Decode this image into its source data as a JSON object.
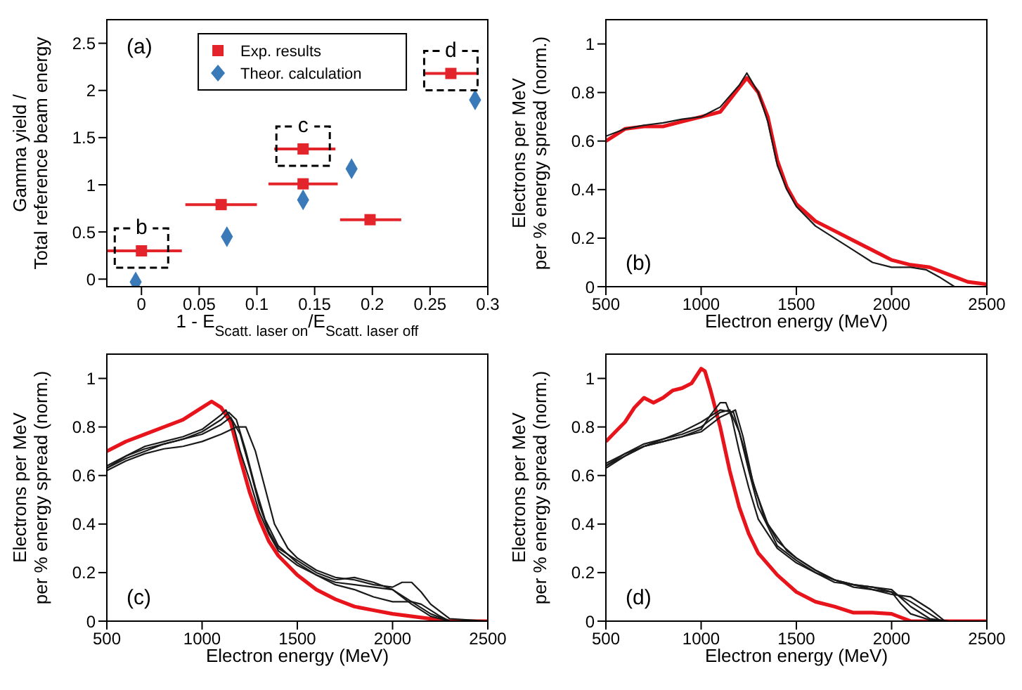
{
  "chart_data": [
    {
      "type": "scatter",
      "xlabel": "1 - E$_{Scatt. laser on}$/E$_{Scatt. laser off}$",
      "ylabel": "Gamma yield /\nTotal reference beam energy",
      "xlim": [
        -0.03,
        0.3
      ],
      "ylim": [
        -0.08,
        2.75
      ],
      "xticks": [
        0,
        0.05,
        0.1,
        0.15,
        0.2,
        0.25,
        0.3
      ],
      "yticks": [
        0,
        0.5,
        1,
        1.5,
        2,
        2.5
      ],
      "legend": "top",
      "annotations": [
        "(a)",
        {
          "text": "b",
          "x": 0,
          "y": 0.3
        },
        {
          "text": "c",
          "x": 0.14,
          "y": 1.38
        },
        {
          "text": "d",
          "x": 0.268,
          "y": 2.18
        }
      ],
      "series": [
        {
          "name": "Exp. results",
          "color": "#e3242b",
          "marker": "square",
          "x": [
            0,
            0.069,
            0.14,
            0.14,
            0.198,
            0.268
          ],
          "values": [
            0.3,
            0.79,
            1.38,
            1.01,
            0.63,
            2.18
          ],
          "xerrors": [
            [
              -0.03,
              0.035
            ],
            [
              0.038,
              0.1
            ],
            [
              0.115,
              0.168
            ],
            [
              0.11,
              0.17
            ],
            [
              0.172,
              0.225
            ],
            [
              0.245,
              0.292
            ]
          ]
        },
        {
          "name": "Theor. calculation",
          "color": "#3a7ab8",
          "marker": "diamond",
          "x": [
            -0.005,
            0.074,
            0.14,
            0.182,
            0.289
          ],
          "values": [
            -0.03,
            0.45,
            0.84,
            1.17,
            1.9
          ]
        }
      ]
    },
    {
      "type": "line",
      "xlabel": "Electron energy (MeV)",
      "ylabel": "Electrons per MeV\nper % energy spread (norm.)",
      "xlim": [
        500,
        2500
      ],
      "ylim": [
        0,
        1.1
      ],
      "xticks": [
        500,
        1000,
        1500,
        2000,
        2500
      ],
      "yticks": [
        0,
        0.2,
        0.4,
        0.6,
        0.8,
        1
      ],
      "annotations": [
        "(b)"
      ],
      "series": [
        {
          "color": "#e8141c",
          "x": [
            500,
            600,
            700,
            800,
            900,
            1000,
            1100,
            1200,
            1240,
            1300,
            1350,
            1400,
            1450,
            1500,
            1600,
            1700,
            1800,
            1900,
            2000,
            2100,
            2200,
            2300,
            2400,
            2500
          ],
          "values": [
            0.6,
            0.65,
            0.66,
            0.66,
            0.68,
            0.7,
            0.72,
            0.82,
            0.86,
            0.8,
            0.7,
            0.52,
            0.41,
            0.34,
            0.27,
            0.23,
            0.19,
            0.15,
            0.11,
            0.09,
            0.08,
            0.05,
            0.02,
            0.01
          ]
        },
        {
          "color": "#1a1a1a",
          "x": [
            500,
            600,
            700,
            800,
            900,
            1000,
            1100,
            1200,
            1240,
            1300,
            1350,
            1400,
            1450,
            1500,
            1600,
            1700,
            1800,
            1900,
            2000,
            2100,
            2180,
            2250,
            2330,
            2500
          ],
          "values": [
            0.62,
            0.65,
            0.665,
            0.675,
            0.69,
            0.7,
            0.74,
            0.83,
            0.88,
            0.8,
            0.68,
            0.5,
            0.4,
            0.33,
            0.25,
            0.2,
            0.15,
            0.1,
            0.08,
            0.08,
            0.07,
            0.04,
            0,
            0
          ]
        }
      ]
    },
    {
      "type": "line",
      "xlabel": "Electron energy (MeV)",
      "ylabel": "Electrons per MeV\nper % energy spread (norm.)",
      "xlim": [
        500,
        2500
      ],
      "ylim": [
        0,
        1.1
      ],
      "xticks": [
        500,
        1000,
        1500,
        2000,
        2500
      ],
      "yticks": [
        0,
        0.2,
        0.4,
        0.6,
        0.8,
        1
      ],
      "annotations": [
        "(c)"
      ],
      "series": [
        {
          "color": "#e8141c",
          "x": [
            500,
            600,
            700,
            800,
            900,
            1000,
            1050,
            1100,
            1150,
            1200,
            1250,
            1300,
            1350,
            1400,
            1500,
            1600,
            1700,
            1800,
            1900,
            2000,
            2100,
            2200,
            2300,
            2500
          ],
          "values": [
            0.7,
            0.74,
            0.77,
            0.8,
            0.83,
            0.88,
            0.905,
            0.88,
            0.82,
            0.67,
            0.53,
            0.42,
            0.33,
            0.27,
            0.19,
            0.13,
            0.09,
            0.06,
            0.045,
            0.03,
            0.02,
            0.01,
            0,
            0
          ]
        },
        {
          "color": "#1a1a1a",
          "x": [
            500,
            600,
            700,
            800,
            900,
            1000,
            1100,
            1125,
            1160,
            1200,
            1250,
            1300,
            1350,
            1400,
            1500,
            1600,
            1700,
            1800,
            1900,
            2000,
            2100,
            2200,
            2300,
            2500
          ],
          "values": [
            0.63,
            0.68,
            0.72,
            0.74,
            0.76,
            0.79,
            0.85,
            0.87,
            0.82,
            0.7,
            0.58,
            0.45,
            0.36,
            0.29,
            0.23,
            0.19,
            0.16,
            0.15,
            0.14,
            0.13,
            0.07,
            0.02,
            0,
            0
          ]
        },
        {
          "color": "#1a1a1a",
          "x": [
            500,
            600,
            700,
            800,
            900,
            1000,
            1100,
            1180,
            1230,
            1280,
            1330,
            1380,
            1450,
            1500,
            1600,
            1700,
            1800,
            1900,
            2000,
            2050,
            2100,
            2150,
            2200,
            2300,
            2500
          ],
          "values": [
            0.62,
            0.66,
            0.69,
            0.71,
            0.72,
            0.74,
            0.77,
            0.8,
            0.8,
            0.7,
            0.55,
            0.4,
            0.3,
            0.26,
            0.21,
            0.18,
            0.17,
            0.15,
            0.14,
            0.16,
            0.16,
            0.12,
            0.07,
            0.01,
            0
          ]
        },
        {
          "color": "#1a1a1a",
          "x": [
            500,
            600,
            700,
            800,
            900,
            1000,
            1100,
            1140,
            1180,
            1230,
            1280,
            1330,
            1400,
            1500,
            1600,
            1700,
            1800,
            1900,
            2000,
            2100,
            2150,
            2250,
            2300,
            2500
          ],
          "values": [
            0.64,
            0.68,
            0.71,
            0.73,
            0.75,
            0.78,
            0.83,
            0.86,
            0.83,
            0.7,
            0.55,
            0.42,
            0.31,
            0.24,
            0.19,
            0.15,
            0.13,
            0.1,
            0.08,
            0.08,
            0.07,
            0.02,
            0,
            0
          ]
        },
        {
          "color": "#1a1a1a",
          "x": [
            500,
            600,
            700,
            800,
            900,
            1000,
            1100,
            1150,
            1200,
            1250,
            1300,
            1350,
            1400,
            1500,
            1600,
            1700,
            1800,
            1900,
            2000,
            2100,
            2200,
            2300,
            2500
          ],
          "values": [
            0.63,
            0.67,
            0.7,
            0.73,
            0.75,
            0.77,
            0.81,
            0.84,
            0.77,
            0.63,
            0.48,
            0.37,
            0.3,
            0.25,
            0.2,
            0.17,
            0.18,
            0.16,
            0.13,
            0.08,
            0.03,
            0,
            0
          ]
        }
      ]
    },
    {
      "type": "line",
      "xlabel": "Electron energy (MeV)",
      "ylabel": "Electrons per MeV\nper % energy spread (norm.)",
      "xlim": [
        500,
        2500
      ],
      "ylim": [
        0,
        1.1
      ],
      "xticks": [
        500,
        1000,
        1500,
        2000,
        2500
      ],
      "yticks": [
        0,
        0.2,
        0.4,
        0.6,
        0.8,
        1
      ],
      "annotations": [
        "(d)"
      ],
      "series": [
        {
          "color": "#e8141c",
          "x": [
            500,
            550,
            600,
            650,
            700,
            750,
            800,
            850,
            900,
            950,
            1000,
            1020,
            1050,
            1100,
            1150,
            1200,
            1250,
            1300,
            1400,
            1500,
            1600,
            1700,
            1800,
            1900,
            2000,
            2050,
            2100,
            2500
          ],
          "values": [
            0.74,
            0.78,
            0.82,
            0.88,
            0.92,
            0.9,
            0.92,
            0.95,
            0.96,
            0.98,
            1.04,
            1.03,
            0.95,
            0.8,
            0.62,
            0.47,
            0.36,
            0.28,
            0.19,
            0.12,
            0.08,
            0.06,
            0.035,
            0.035,
            0.03,
            0.015,
            0,
            0
          ]
        },
        {
          "color": "#1a1a1a",
          "x": [
            500,
            600,
            700,
            800,
            900,
            1000,
            1050,
            1100,
            1130,
            1160,
            1200,
            1250,
            1300,
            1400,
            1500,
            1600,
            1700,
            1800,
            1900,
            2000,
            2050,
            2100,
            2200,
            2300,
            2400
          ],
          "values": [
            0.64,
            0.68,
            0.72,
            0.74,
            0.76,
            0.79,
            0.85,
            0.9,
            0.9,
            0.84,
            0.7,
            0.55,
            0.42,
            0.3,
            0.24,
            0.2,
            0.17,
            0.15,
            0.14,
            0.12,
            0.07,
            0.03,
            0.005,
            0,
            0
          ]
        },
        {
          "color": "#1a1a1a",
          "x": [
            500,
            600,
            700,
            800,
            900,
            1000,
            1100,
            1150,
            1200,
            1250,
            1300,
            1400,
            1500,
            1600,
            1700,
            1800,
            1900,
            2000,
            2100,
            2200,
            2300,
            2400
          ],
          "values": [
            0.64,
            0.69,
            0.72,
            0.75,
            0.77,
            0.8,
            0.86,
            0.87,
            0.78,
            0.62,
            0.47,
            0.31,
            0.25,
            0.2,
            0.16,
            0.15,
            0.14,
            0.13,
            0.06,
            0.01,
            0,
            0
          ]
        },
        {
          "color": "#1a1a1a",
          "x": [
            500,
            600,
            700,
            800,
            900,
            1000,
            1100,
            1170,
            1230,
            1280,
            1350,
            1450,
            1500,
            1600,
            1700,
            1800,
            1900,
            2000,
            2100,
            2200,
            2280,
            2400
          ],
          "values": [
            0.65,
            0.69,
            0.73,
            0.75,
            0.78,
            0.82,
            0.87,
            0.86,
            0.7,
            0.55,
            0.4,
            0.29,
            0.26,
            0.21,
            0.17,
            0.15,
            0.13,
            0.11,
            0.1,
            0.05,
            0,
            0
          ]
        },
        {
          "color": "#1a1a1a",
          "x": [
            500,
            600,
            700,
            800,
            900,
            1000,
            1100,
            1180,
            1220,
            1270,
            1330,
            1400,
            1500,
            1600,
            1700,
            1800,
            1900,
            2000,
            2100,
            2200,
            2260,
            2400
          ],
          "values": [
            0.63,
            0.68,
            0.72,
            0.74,
            0.76,
            0.78,
            0.84,
            0.87,
            0.76,
            0.58,
            0.43,
            0.33,
            0.26,
            0.21,
            0.17,
            0.14,
            0.13,
            0.12,
            0.08,
            0.03,
            0,
            0
          ]
        }
      ]
    }
  ]
}
